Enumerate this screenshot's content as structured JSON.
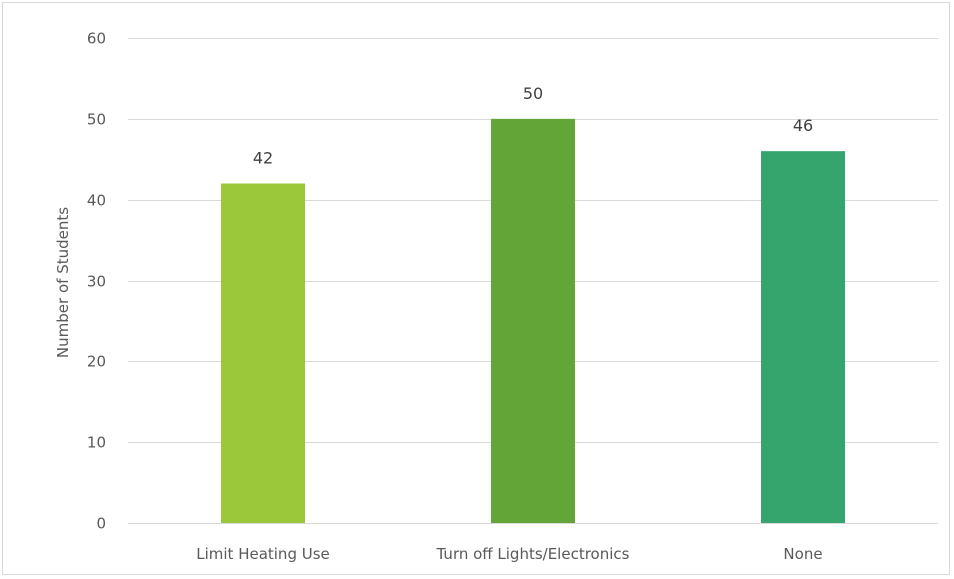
{
  "chart_data": {
    "type": "bar",
    "categories": [
      "Limit Heating Use",
      "Turn off Lights/Electronics",
      "None"
    ],
    "values": [
      42,
      50,
      46
    ],
    "data_labels": [
      "42",
      "50",
      "46"
    ],
    "ylabel": "Number  of Students",
    "ylim": [
      0,
      60
    ],
    "yticks": [
      0,
      10,
      20,
      30,
      40,
      50,
      60
    ],
    "grid": true,
    "legend": "none",
    "colors": [
      "#9bc83a",
      "#64a537",
      "#35a46d"
    ]
  }
}
